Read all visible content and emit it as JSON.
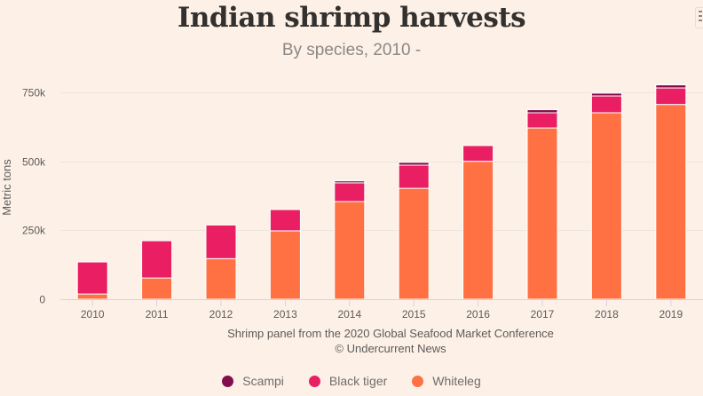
{
  "header": {
    "title": "Indian shrimp harvests",
    "subtitle": "By species, 2010 -"
  },
  "menu": {
    "icon": "hamburger-menu-icon"
  },
  "credits": {
    "line1": "Shrimp panel from the 2020 Global Seafood Market Conference",
    "line2": "© Undercurrent News"
  },
  "chart_data": {
    "type": "bar",
    "stacked": true,
    "title": "Indian shrimp harvests",
    "subtitle": "By species, 2010 -",
    "xlabel": "",
    "ylabel": "Metric tons",
    "categories": [
      "2010",
      "2011",
      "2012",
      "2013",
      "2014",
      "2015",
      "2016",
      "2017",
      "2018",
      "2019"
    ],
    "series": [
      {
        "name": "Whiteleg",
        "color": "#ff7043",
        "values": [
          19000,
          77000,
          147000,
          248000,
          354000,
          402000,
          500000,
          621000,
          676000,
          706000
        ]
      },
      {
        "name": "Black tiger",
        "color": "#e91e63",
        "values": [
          116000,
          135000,
          122000,
          77000,
          68000,
          84000,
          57000,
          55000,
          61000,
          60000
        ]
      },
      {
        "name": "Scampi",
        "color": "#800e4a",
        "values": [
          0,
          0,
          0,
          0,
          7000,
          10000,
          0,
          11000,
          10000,
          11000
        ]
      }
    ],
    "yticks": [
      0,
      250000,
      500000,
      750000
    ],
    "ytick_labels": [
      "0",
      "250k",
      "500k",
      "750k"
    ],
    "ylim": [
      0,
      750000
    ],
    "grid": true,
    "legend": {
      "placement": "bottom-center",
      "order": [
        "Scampi",
        "Black tiger",
        "Whiteleg"
      ]
    }
  }
}
